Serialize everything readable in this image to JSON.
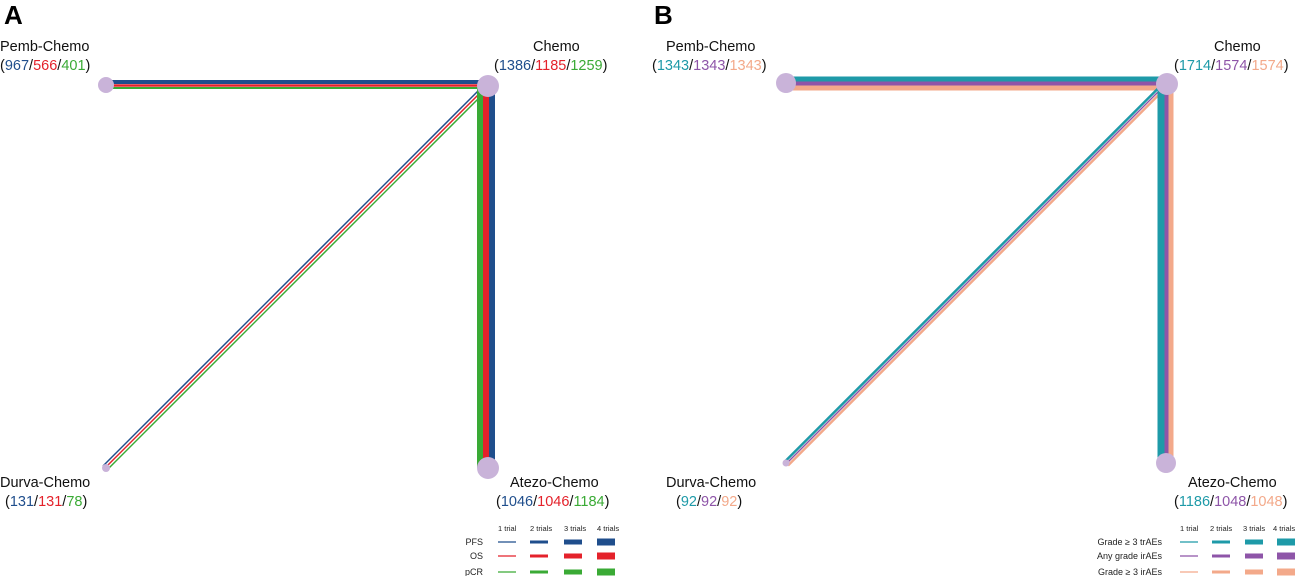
{
  "panels": [
    {
      "letter": "A",
      "colors": [
        "#1f4e8c",
        "#e4222b",
        "#3aaa35"
      ],
      "nodes": {
        "pemb": {
          "name": "Pemb-Chemo",
          "counts": [
            "967",
            "566",
            "401"
          ]
        },
        "chemo": {
          "name": "Chemo",
          "counts": [
            "1386",
            "1185",
            "1259"
          ]
        },
        "durva": {
          "name": "Durva-Chemo",
          "counts": [
            "131",
            "131",
            "78"
          ]
        },
        "atezo": {
          "name": "Atezo-Chemo",
          "counts": [
            "1046",
            "1046",
            "1184"
          ]
        }
      },
      "legend": {
        "columns": [
          "1 trial",
          "2 trials",
          "3 trials",
          "4 trials"
        ],
        "rows": [
          "PFS",
          "OS",
          "pCR"
        ]
      }
    },
    {
      "letter": "B",
      "colors": [
        "#1e9aa8",
        "#8e55a8",
        "#f3a98a"
      ],
      "nodes": {
        "pemb": {
          "name": "Pemb-Chemo",
          "counts": [
            "1343",
            "1343",
            "1343"
          ]
        },
        "chemo": {
          "name": "Chemo",
          "counts": [
            "1714",
            "1574",
            "1574"
          ]
        },
        "durva": {
          "name": "Durva-Chemo",
          "counts": [
            "92",
            "92",
            "92"
          ]
        },
        "atezo": {
          "name": "Atezo-Chemo",
          "counts": [
            "1186",
            "1048",
            "1048"
          ]
        }
      },
      "legend": {
        "columns": [
          "1 trial",
          "2 trials",
          "3 trials",
          "4 trials"
        ],
        "rows": [
          "Grade ≥ 3 trAEs",
          "Any grade irAEs",
          "Grade ≥ 3 irAEs"
        ]
      }
    }
  ],
  "node_color": "#c9b3d9"
}
